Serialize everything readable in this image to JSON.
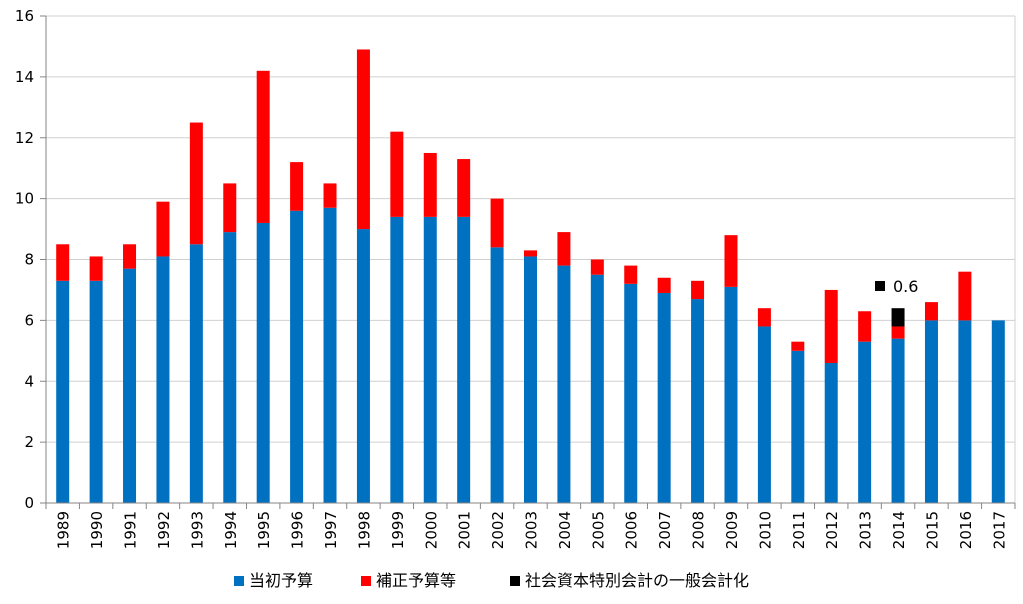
{
  "chart_data": {
    "type": "bar",
    "stacked": true,
    "categories": [
      "1989",
      "1990",
      "1991",
      "1992",
      "1993",
      "1994",
      "1995",
      "1996",
      "1997",
      "1998",
      "1999",
      "2000",
      "2001",
      "2002",
      "2003",
      "2004",
      "2005",
      "2006",
      "2007",
      "2008",
      "2009",
      "2010",
      "2011",
      "2012",
      "2013",
      "2014",
      "2015",
      "2016",
      "2017"
    ],
    "series": [
      {
        "name": "当初予算",
        "color": "#0070C0",
        "values": [
          7.3,
          7.3,
          7.7,
          8.1,
          8.5,
          8.9,
          9.2,
          9.6,
          9.7,
          9.0,
          9.4,
          9.4,
          9.4,
          8.4,
          8.1,
          7.8,
          7.5,
          7.2,
          6.9,
          6.7,
          7.1,
          5.8,
          5.0,
          4.6,
          5.3,
          5.4,
          6.0,
          6.0,
          6.0
        ]
      },
      {
        "name": "補正予算等",
        "color": "#FF0000",
        "values": [
          1.2,
          0.8,
          0.8,
          1.8,
          4.0,
          1.6,
          5.0,
          1.6,
          0.8,
          5.9,
          2.8,
          2.1,
          1.9,
          1.6,
          0.2,
          1.1,
          0.5,
          0.6,
          0.5,
          0.6,
          1.7,
          0.6,
          0.3,
          2.4,
          1.0,
          0.4,
          0.6,
          1.6,
          0.0
        ]
      },
      {
        "name": "社会資本特別会計の一般会計化",
        "color": "#000000",
        "values": [
          0,
          0,
          0,
          0,
          0,
          0,
          0,
          0,
          0,
          0,
          0,
          0,
          0,
          0,
          0,
          0,
          0,
          0,
          0,
          0,
          0,
          0,
          0,
          0,
          0,
          0.6,
          0,
          0,
          0
        ]
      }
    ],
    "ylim": [
      0,
      16
    ],
    "yticks": [
      0,
      2,
      4,
      6,
      8,
      10,
      12,
      14,
      16
    ],
    "grid": true,
    "legend": "bottom",
    "annotation": {
      "label": "0.6",
      "category": "2014"
    }
  }
}
